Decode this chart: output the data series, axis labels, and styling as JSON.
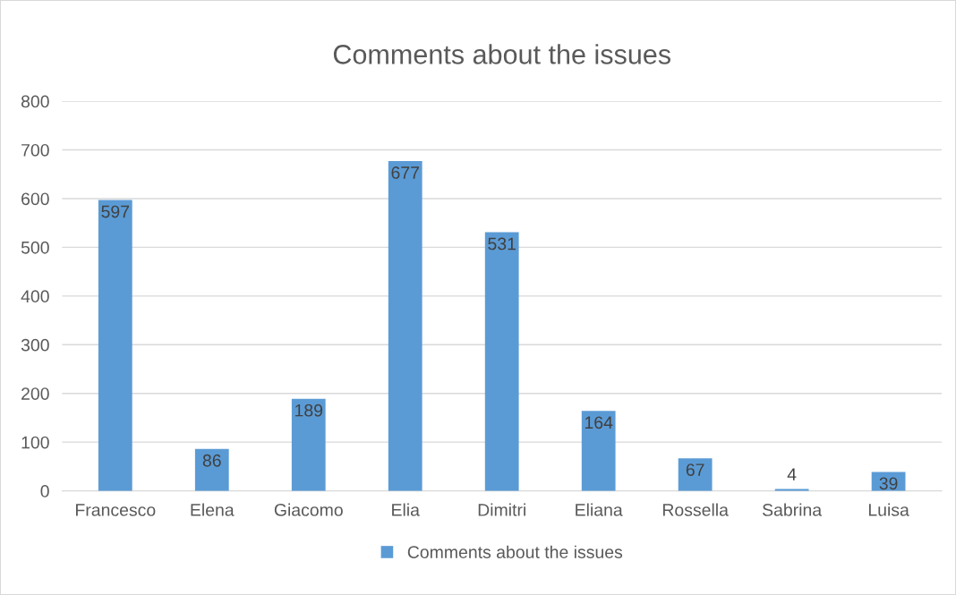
{
  "chart_data": {
    "type": "bar",
    "title": "Comments about the issues",
    "categories": [
      "Francesco",
      "Elena",
      "Giacomo",
      "Elia",
      "Dimitri",
      "Eliana",
      "Rossella",
      "Sabrina",
      "Luisa"
    ],
    "series": [
      {
        "name": "Comments about the issues",
        "color": "#5b9bd5",
        "values": [
          597,
          86,
          189,
          677,
          531,
          164,
          67,
          4,
          39
        ]
      }
    ],
    "ylim": [
      0,
      800
    ],
    "yticks": [
      0,
      100,
      200,
      300,
      400,
      500,
      600,
      700,
      800
    ],
    "grid": "y",
    "legend": "bottom",
    "data_labels": true
  }
}
